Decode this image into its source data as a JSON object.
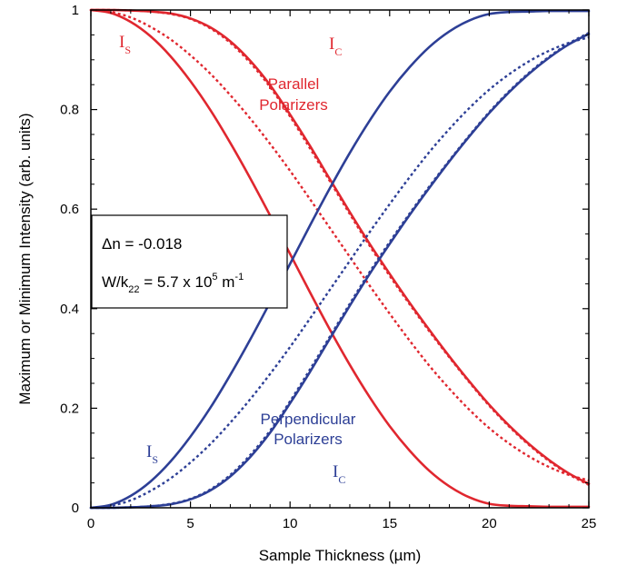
{
  "chart_data": {
    "type": "line",
    "title": "",
    "xlabel": "Sample Thickness  (µm)",
    "ylabel": "Maximum or Minimum Intensity  (arb. units)",
    "xlim": [
      0,
      25
    ],
    "ylim": [
      0,
      1
    ],
    "xticks": [
      0,
      5,
      10,
      15,
      20,
      25
    ],
    "yticks": [
      0,
      0.2,
      0.4,
      0.6,
      0.8,
      1
    ],
    "ytick_labels": [
      "0",
      "0.2",
      "0.4",
      "0.6",
      "0.8",
      "1"
    ],
    "grid": false,
    "x": [
      0,
      1,
      2,
      3,
      4,
      5,
      6,
      7,
      8,
      9,
      10,
      11,
      12,
      13,
      14,
      15,
      16,
      17,
      18,
      19,
      20,
      21,
      22,
      23,
      24,
      25
    ],
    "series": [
      {
        "id": "par_is_solid",
        "group": "parallel",
        "style": "solid",
        "values": [
          1.0,
          0.994,
          0.976,
          0.947,
          0.907,
          0.857,
          0.799,
          0.733,
          0.662,
          0.587,
          0.51,
          0.433,
          0.358,
          0.287,
          0.222,
          0.164,
          0.115,
          0.074,
          0.043,
          0.021,
          0.008,
          0.004,
          0.003,
          0.002,
          0.002,
          0.002
        ]
      },
      {
        "id": "par_is_dotted",
        "group": "parallel",
        "style": "dotted",
        "values": [
          1.0,
          0.996,
          0.985,
          0.966,
          0.941,
          0.909,
          0.872,
          0.829,
          0.782,
          0.731,
          0.677,
          0.62,
          0.562,
          0.504,
          0.446,
          0.39,
          0.336,
          0.285,
          0.239,
          0.197,
          0.16,
          0.129,
          0.103,
          0.082,
          0.066,
          0.055
        ]
      },
      {
        "id": "par_ic_solid",
        "group": "parallel",
        "style": "solid",
        "values": [
          1.0,
          1.0,
          0.999,
          0.997,
          0.993,
          0.983,
          0.965,
          0.937,
          0.898,
          0.849,
          0.79,
          0.727,
          0.66,
          0.594,
          0.53,
          0.47,
          0.412,
          0.357,
          0.304,
          0.254,
          0.207,
          0.165,
          0.128,
          0.096,
          0.069,
          0.048
        ]
      },
      {
        "id": "par_ic_dotted",
        "group": "parallel",
        "style": "dotted",
        "values": [
          1.0,
          1.0,
          0.999,
          0.997,
          0.992,
          0.982,
          0.963,
          0.934,
          0.894,
          0.845,
          0.786,
          0.722,
          0.656,
          0.59,
          0.526,
          0.466,
          0.409,
          0.354,
          0.302,
          0.252,
          0.205,
          0.163,
          0.126,
          0.094,
          0.067,
          0.046
        ]
      },
      {
        "id": "perp_is_solid",
        "group": "perpendicular",
        "style": "solid",
        "values": [
          0.0,
          0.006,
          0.024,
          0.053,
          0.093,
          0.143,
          0.201,
          0.267,
          0.338,
          0.413,
          0.49,
          0.567,
          0.642,
          0.713,
          0.778,
          0.836,
          0.885,
          0.926,
          0.957,
          0.979,
          0.992,
          0.996,
          0.997,
          0.998,
          0.998,
          0.998
        ]
      },
      {
        "id": "perp_is_dotted",
        "group": "perpendicular",
        "style": "dotted",
        "values": [
          0.0,
          0.004,
          0.015,
          0.034,
          0.059,
          0.091,
          0.128,
          0.171,
          0.218,
          0.269,
          0.323,
          0.38,
          0.438,
          0.496,
          0.554,
          0.61,
          0.664,
          0.715,
          0.761,
          0.803,
          0.84,
          0.871,
          0.897,
          0.918,
          0.934,
          0.945
        ]
      },
      {
        "id": "perp_ic_solid",
        "group": "perpendicular",
        "style": "solid",
        "values": [
          0.0,
          0.0,
          0.001,
          0.003,
          0.007,
          0.017,
          0.035,
          0.063,
          0.102,
          0.151,
          0.21,
          0.273,
          0.34,
          0.406,
          0.47,
          0.53,
          0.588,
          0.643,
          0.696,
          0.746,
          0.793,
          0.835,
          0.872,
          0.904,
          0.931,
          0.952
        ]
      },
      {
        "id": "perp_ic_dotted",
        "group": "perpendicular",
        "style": "dotted",
        "values": [
          0.0,
          0.0,
          0.001,
          0.003,
          0.008,
          0.018,
          0.037,
          0.066,
          0.106,
          0.155,
          0.214,
          0.278,
          0.344,
          0.41,
          0.474,
          0.534,
          0.591,
          0.646,
          0.698,
          0.748,
          0.795,
          0.837,
          0.874,
          0.906,
          0.933,
          0.954
        ]
      }
    ],
    "annotations": {
      "par_is": {
        "main": "I",
        "sub": "S"
      },
      "par_ic": {
        "main": "I",
        "sub": "C"
      },
      "par_label_1": "Parallel",
      "par_label_2": "Polarizers",
      "perp_is": {
        "main": "I",
        "sub": "S"
      },
      "perp_ic": {
        "main": "I",
        "sub": "C"
      },
      "perp_label_1": "Perpendicular",
      "perp_label_2": "Polarizers"
    },
    "legend_box": {
      "line1": "Δn = -0.018",
      "line2_prefix": "W/k",
      "line2_sub": "22",
      "line2_mid": " = 5.7 x 10",
      "line2_sup": "5",
      "line2_unit": " m",
      "line2_unit_sup": "-1"
    },
    "colors": {
      "parallel": "#e0272f",
      "perpendicular": "#2d3f96",
      "axis": "#000000"
    }
  }
}
